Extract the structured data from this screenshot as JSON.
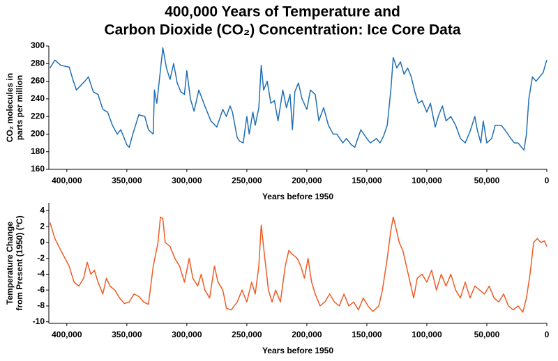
{
  "title": [
    "400,000 Years of Temperature and",
    "Carbon Dioxide (CO₂) Concentration: Ice Core Data"
  ],
  "chart_data": [
    {
      "type": "line",
      "ylabel": [
        "CO₂ molecules in",
        "parts per million"
      ],
      "xlabel": "Years before 1950",
      "xlim": [
        415000,
        0
      ],
      "ylim": [
        160,
        300
      ],
      "xticks": [
        {
          "value": 400000,
          "label": "400,000"
        },
        {
          "value": 350000,
          "label": "350,000"
        },
        {
          "value": 300000,
          "label": "300,000"
        },
        {
          "value": 250000,
          "label": "250,000"
        },
        {
          "value": 200000,
          "label": "200,000"
        },
        {
          "value": 150000,
          "label": "150,000"
        },
        {
          "value": 100000,
          "label": "100,000"
        },
        {
          "value": 50000,
          "label": "50,000"
        },
        0
      ],
      "yticks": [
        160,
        180,
        200,
        220,
        240,
        260,
        280,
        300
      ],
      "x": [
        414000,
        410000,
        405000,
        398000,
        395000,
        392000,
        385000,
        382000,
        378000,
        374000,
        370000,
        366000,
        362000,
        358000,
        355000,
        350000,
        348000,
        345000,
        340000,
        335000,
        332000,
        328000,
        327000,
        325000,
        323000,
        320000,
        317000,
        314000,
        311000,
        308000,
        305000,
        302000,
        300000,
        297000,
        294000,
        290000,
        285000,
        280000,
        275000,
        270000,
        267000,
        264000,
        262000,
        258000,
        256000,
        253000,
        250000,
        248000,
        245000,
        243000,
        240000,
        238000,
        236000,
        233000,
        230000,
        227000,
        224000,
        220000,
        217000,
        214000,
        212000,
        210000,
        207000,
        204000,
        200000,
        197000,
        193000,
        190000,
        186000,
        182000,
        178000,
        175000,
        170000,
        167000,
        163000,
        160000,
        155000,
        150000,
        147000,
        142000,
        139000,
        136000,
        133000,
        130000,
        128000,
        125000,
        122000,
        119000,
        116000,
        113000,
        110000,
        107000,
        104000,
        100000,
        97000,
        93000,
        90000,
        87000,
        84000,
        80000,
        76000,
        72000,
        68000,
        64000,
        60000,
        58000,
        55000,
        53000,
        50000,
        46000,
        43000,
        38000,
        35000,
        30000,
        27000,
        24000,
        21000,
        19000,
        17000,
        15000,
        12000,
        9000,
        6000,
        3000,
        1000,
        0
      ],
      "series": [
        {
          "name": "CO₂",
          "color": "#1f6fb5",
          "values": [
            275,
            284,
            278,
            276,
            262,
            250,
            260,
            265,
            248,
            245,
            228,
            225,
            210,
            200,
            205,
            188,
            185,
            200,
            222,
            220,
            205,
            200,
            250,
            235,
            260,
            298,
            275,
            262,
            280,
            258,
            248,
            245,
            272,
            240,
            226,
            250,
            232,
            215,
            208,
            228,
            220,
            232,
            225,
            196,
            192,
            190,
            220,
            200,
            225,
            210,
            230,
            278,
            250,
            260,
            235,
            238,
            215,
            250,
            230,
            245,
            205,
            248,
            258,
            240,
            228,
            250,
            245,
            215,
            230,
            210,
            200,
            200,
            190,
            195,
            188,
            185,
            205,
            195,
            190,
            195,
            190,
            198,
            210,
            250,
            287,
            275,
            282,
            268,
            275,
            265,
            248,
            235,
            238,
            225,
            235,
            208,
            222,
            232,
            215,
            220,
            210,
            195,
            190,
            203,
            220,
            205,
            190,
            215,
            190,
            195,
            210,
            210,
            205,
            195,
            190,
            190,
            185,
            182,
            200,
            240,
            265,
            260,
            265,
            270,
            280,
            284
          ]
        }
      ]
    },
    {
      "type": "line",
      "ylabel": [
        "Temperature Change",
        "from Present (1950) (ºC)"
      ],
      "xlabel": "Years before 1950",
      "xlim": [
        415000,
        0
      ],
      "ylim": [
        -10.2,
        5
      ],
      "xticks": [
        {
          "value": 400000,
          "label": "400,000"
        },
        {
          "value": 350000,
          "label": "350,000"
        },
        {
          "value": 300000,
          "label": "300,000"
        },
        {
          "value": 250000,
          "label": "250,000"
        },
        {
          "value": 200000,
          "label": "200,000"
        },
        {
          "value": 150000,
          "label": "150,000"
        },
        {
          "value": 100000,
          "label": "100,000"
        },
        {
          "value": 50000,
          "label": "50,000"
        },
        0
      ],
      "yticks": [
        -10,
        -8,
        -6,
        -4,
        -2,
        0,
        2,
        4
      ],
      "x": [
        414000,
        410000,
        405000,
        398000,
        394000,
        390000,
        386000,
        383000,
        380000,
        377000,
        374000,
        370000,
        367000,
        364000,
        360000,
        356000,
        352000,
        348000,
        344000,
        340000,
        336000,
        332000,
        328000,
        324000,
        322000,
        320000,
        318000,
        314000,
        310000,
        306000,
        302000,
        298000,
        295000,
        291000,
        288000,
        285000,
        281000,
        277000,
        274000,
        270000,
        267000,
        263000,
        258000,
        254000,
        250000,
        246000,
        243000,
        240000,
        238000,
        235000,
        232000,
        229000,
        226000,
        222000,
        218000,
        215000,
        212000,
        208000,
        205000,
        202000,
        199000,
        196000,
        193000,
        189000,
        185000,
        181000,
        177000,
        173000,
        169000,
        165000,
        161000,
        157000,
        153000,
        149000,
        145000,
        140000,
        137000,
        133000,
        130000,
        128000,
        126000,
        123000,
        120000,
        117000,
        114000,
        111000,
        108000,
        104000,
        100000,
        96000,
        92000,
        88000,
        84000,
        80000,
        76000,
        72000,
        68000,
        64000,
        60000,
        56000,
        52000,
        48000,
        44000,
        40000,
        36000,
        32000,
        28000,
        24000,
        20000,
        17000,
        14000,
        11000,
        8000,
        5000,
        2000,
        0
      ],
      "series": [
        {
          "name": "Temperature",
          "color": "#f05a23",
          "values": [
            2.5,
            0.5,
            -1,
            -3,
            -5,
            -5.5,
            -4.5,
            -2.5,
            -4,
            -3.5,
            -5,
            -6.5,
            -4.5,
            -5.5,
            -6,
            -7,
            -7.7,
            -7.5,
            -6.5,
            -6.8,
            -7.5,
            -7.8,
            -3,
            0,
            3.2,
            3,
            0,
            -0.5,
            -2,
            -3,
            -5,
            -2,
            -4.5,
            -5.5,
            -4,
            -6,
            -7,
            -3,
            -5,
            -6,
            -8.3,
            -8.5,
            -7.5,
            -6,
            -7.5,
            -5,
            -6.5,
            -3,
            2.2,
            -2,
            -6,
            -7.5,
            -6,
            -7.5,
            -3,
            -1,
            -1.5,
            -2,
            -3,
            -4.5,
            -2,
            -5,
            -6.5,
            -8,
            -7.5,
            -6.5,
            -7.5,
            -8,
            -6.5,
            -8,
            -7.5,
            -8.5,
            -7,
            -8,
            -8.7,
            -8,
            -6,
            -2,
            1.5,
            3.2,
            2,
            0,
            -1,
            -3,
            -5,
            -7,
            -4.5,
            -4,
            -5,
            -3.5,
            -6,
            -4,
            -5.5,
            -4,
            -6,
            -7,
            -5,
            -7,
            -5.5,
            -6,
            -6.5,
            -5.5,
            -7,
            -7.5,
            -6.5,
            -8,
            -8.5,
            -8,
            -8.8,
            -7,
            -4,
            0,
            0.5,
            0,
            0.2,
            -0.5
          ]
        }
      ]
    }
  ]
}
